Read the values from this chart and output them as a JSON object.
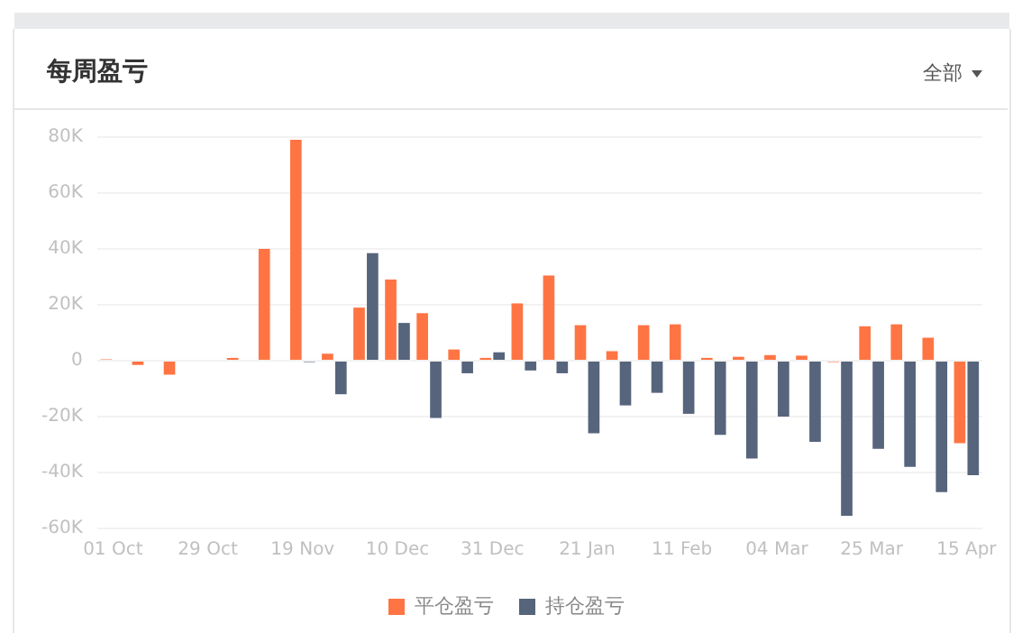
{
  "chart_data": {
    "type": "bar",
    "title": "每周盈亏",
    "annotations": [
      "全部"
    ],
    "categories": [
      "01 Oct",
      null,
      null,
      "29 Oct",
      null,
      null,
      "19 Nov",
      null,
      null,
      "10 Dec",
      null,
      null,
      "31 Dec",
      null,
      null,
      "21 Jan",
      null,
      null,
      "11 Feb",
      null,
      null,
      "04 Mar",
      null,
      null,
      "25 Mar",
      null,
      null,
      "15 Apr"
    ],
    "series": [
      {
        "name": "平仓盈亏",
        "color": "#ff7443",
        "values": [
          500,
          -1500,
          -5000,
          0,
          1000,
          40000,
          79000,
          2500,
          19000,
          29000,
          17000,
          4000,
          1000,
          20500,
          30500,
          12700,
          3400,
          12700,
          13000,
          1000,
          1400,
          2000,
          1800,
          -500,
          12300,
          13000,
          8200,
          -29500
        ]
      },
      {
        "name": "持仓盈亏",
        "color": "#56647c",
        "values": [
          0,
          0,
          0,
          0,
          0,
          0,
          -500,
          -12000,
          38500,
          13500,
          -20500,
          -4500,
          3000,
          -3500,
          -4500,
          -26000,
          -16000,
          -11500,
          -19000,
          -26500,
          -35000,
          -20000,
          -29000,
          -55500,
          -31500,
          -38000,
          -47000,
          -41000
        ]
      }
    ],
    "ylim": [
      -60000,
      80000
    ],
    "yticks": [
      {
        "value": -60000,
        "label": "-60K"
      },
      {
        "value": -40000,
        "label": "-40K"
      },
      {
        "value": -20000,
        "label": "-20K"
      },
      0,
      {
        "value": 20000,
        "label": "20K"
      },
      {
        "value": 40000,
        "label": "40K"
      },
      {
        "value": 60000,
        "label": "60K"
      },
      {
        "value": 80000,
        "label": "80K"
      }
    ],
    "grid": "y",
    "legend": "bottom"
  }
}
